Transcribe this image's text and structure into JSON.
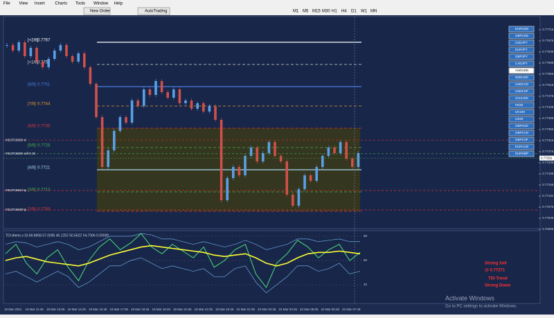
{
  "menu": [
    "File",
    "View",
    "Insert",
    "Charts",
    "Tools",
    "Window",
    "Help"
  ],
  "toolbar": {
    "new_order": "New Order",
    "autotrading": "AutoTrading",
    "timeframes": [
      "M1",
      "M5",
      "M15",
      "M30",
      "H1",
      "H4",
      "D1",
      "W1",
      "MN"
    ]
  },
  "chart": {
    "ylim": [
      0.76995,
      0.77715
    ],
    "yticks": [
      0.77715,
      0.77675,
      0.77635,
      0.77595,
      0.77555,
      0.77515,
      0.77475,
      0.77435,
      0.77395,
      0.77355,
      0.77315,
      0.77275,
      0.77235,
      0.77195,
      0.77155,
      0.77115,
      0.77075,
      0.77035,
      0.76995
    ],
    "current_price": 0.77252,
    "levels": [
      {
        "tag": "[+2/8]",
        "value": 0.7767,
        "color": "#ffffff"
      },
      {
        "tag": "[+1/8]",
        "value": 0.7759,
        "color": "#d8d8d8"
      },
      {
        "tag": "[8/8]",
        "value": 0.7751,
        "color": "#4a7fe0"
      },
      {
        "tag": "[7/8]",
        "value": 0.7744,
        "color": "#e39a2b"
      },
      {
        "tag": "[6/8]",
        "value": 0.7736,
        "color": "#d9363e"
      },
      {
        "tag": "[5/8]",
        "value": 0.7729,
        "color": "#4caf50"
      },
      {
        "tag": "[4/8]",
        "value": 0.7721,
        "color": "#a8d8f0"
      },
      {
        "tag": "[3/8]",
        "value": 0.7713,
        "color": "#4caf50"
      },
      {
        "tag": "[2/8]",
        "value": 0.7706,
        "color": "#d9363e"
      }
    ],
    "orders": [
      {
        "label": "#313715829 sl",
        "value": 0.77317,
        "color": "#e03030"
      },
      {
        "label": "#313715829 sell 0.15",
        "value": 0.77268,
        "color": "#3fbf3f"
      },
      {
        "label": "#313715824 tp",
        "value": 0.77135,
        "color": "#e03030"
      },
      {
        "label": "#313715829 tp",
        "value": 0.77065,
        "color": "#e03030"
      }
    ],
    "closes": [
      0.7766,
      0.7764,
      0.7767,
      0.7762,
      0.7765,
      0.776,
      0.7758,
      0.7761,
      0.7764,
      0.7766,
      0.7762,
      0.776,
      0.7763,
      0.7758,
      0.7752,
      0.774,
      0.7722,
      0.7728,
      0.7735,
      0.774,
      0.7738,
      0.7746,
      0.7744,
      0.775,
      0.7748,
      0.7753,
      0.7749,
      0.7747,
      0.775,
      0.7745,
      0.7746,
      0.7743,
      0.7745,
      0.7742,
      0.7744,
      0.7739,
      0.771,
      0.7718,
      0.7722,
      0.7719,
      0.7726,
      0.7729,
      0.7724,
      0.7727,
      0.7731,
      0.7726,
      0.7724,
      0.7712,
      0.7708,
      0.7714,
      0.7719,
      0.7717,
      0.7722,
      0.7726,
      0.7729,
      0.7727,
      0.7731,
      0.7725,
      0.7722,
      0.7727
    ],
    "time_axis": [
      "19 Mar 2021",
      "19 Mar 11:45",
      "19 Mar 13:05",
      "19 Mar 14:25",
      "19 Mar 15:45",
      "19 Mar 17:05",
      "19 Mar 18:25",
      "19 Mar 19:45",
      "19 Mar 21:05",
      "19 Mar 22:25",
      "19 Mar 23:45",
      "22 Mar 01:05",
      "22 Mar 02:25",
      "22 Mar 03:45",
      "22 Mar 05:05",
      "22 Mar 06:25",
      "22 Mar 07:45"
    ]
  },
  "symbols": [
    "EURUSD",
    "GBPUSD",
    "USDJPY",
    "EURJPY",
    "GBPJPY",
    "CADJPY",
    "AUDUSD",
    "NZDUSD",
    "USDCAD",
    "USDCHF",
    "XAUUSD",
    "HK50",
    "UK100",
    "US30",
    "GBPAUD",
    "GBPCAD",
    "GBPCHF",
    "EURAUD",
    "EURGBP"
  ],
  "selected_symbol": 6,
  "indicator": {
    "title": "TDI Alerts v.10 68.8958 57.0095 45.1252 50.5622 54.7306 0.00000",
    "levels": [
      68,
      50,
      32
    ],
    "rsi": [
      55,
      62,
      48,
      40,
      52,
      58,
      45,
      35,
      50,
      60,
      66,
      58,
      63,
      70,
      60,
      55,
      62,
      57,
      52,
      60,
      45,
      50,
      58,
      62,
      40,
      30,
      48,
      55,
      65,
      60,
      52,
      58,
      62,
      50,
      56
    ],
    "signal": [
      50,
      52,
      53,
      51,
      49,
      48,
      47,
      46,
      48,
      51,
      54,
      56,
      58,
      60,
      61,
      60,
      59,
      58,
      57,
      56,
      54,
      53,
      54,
      55,
      52,
      48,
      46,
      48,
      52,
      55,
      56,
      56,
      57,
      56,
      55
    ],
    "upper": [
      62,
      64,
      63,
      60,
      62,
      64,
      62,
      58,
      60,
      64,
      68,
      68,
      68,
      70,
      69,
      66,
      66,
      64,
      62,
      64,
      62,
      60,
      62,
      65,
      62,
      58,
      60,
      62,
      66,
      66,
      64,
      65,
      66,
      64,
      64
    ],
    "lower": [
      40,
      42,
      38,
      34,
      38,
      42,
      38,
      30,
      34,
      40,
      46,
      46,
      50,
      52,
      48,
      44,
      46,
      44,
      42,
      44,
      38,
      38,
      44,
      46,
      34,
      26,
      32,
      38,
      46,
      46,
      42,
      44,
      48,
      40,
      42
    ]
  },
  "signal_panel": [
    "Strong Sell",
    "@ 0.77271",
    "TDI Trend",
    "Strong Down"
  ],
  "watermark": {
    "title": "Activate Windows",
    "text": "Go to PC settings to activate Windows."
  }
}
